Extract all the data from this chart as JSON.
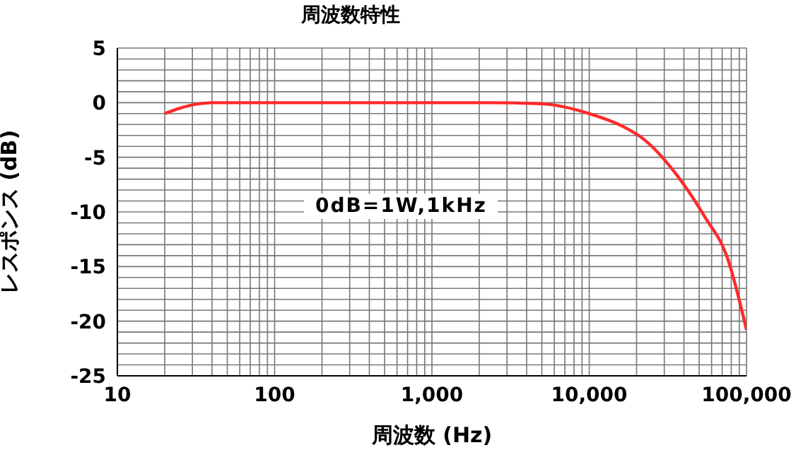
{
  "chart_data": {
    "type": "line",
    "title": "周波数特性",
    "xlabel": "周波数 (Hz)",
    "ylabel": "レスポンス (dB)",
    "annotations": [
      "0dB=1W,1kHz"
    ],
    "log": "x",
    "grid": true,
    "marker": "none",
    "line_style": "solid",
    "xlim": [
      10,
      100000
    ],
    "ylim": [
      -25,
      5
    ],
    "xticks": [
      10,
      {
        "value": 20,
        "label": null
      },
      {
        "value": 30,
        "label": null
      },
      {
        "value": 40,
        "label": null
      },
      {
        "value": 50,
        "label": null
      },
      {
        "value": 60,
        "label": null
      },
      {
        "value": 70,
        "label": null
      },
      {
        "value": 80,
        "label": null
      },
      {
        "value": 90,
        "label": null
      },
      100,
      {
        "value": 200,
        "label": null
      },
      {
        "value": 300,
        "label": null
      },
      {
        "value": 400,
        "label": null
      },
      {
        "value": 500,
        "label": null
      },
      {
        "value": 600,
        "label": null
      },
      {
        "value": 700,
        "label": null
      },
      {
        "value": 800,
        "label": null
      },
      {
        "value": 900,
        "label": null
      },
      {
        "value": 1000,
        "label": "1,000"
      },
      {
        "value": 2000,
        "label": null
      },
      {
        "value": 3000,
        "label": null
      },
      {
        "value": 4000,
        "label": null
      },
      {
        "value": 5000,
        "label": null
      },
      {
        "value": 6000,
        "label": null
      },
      {
        "value": 7000,
        "label": null
      },
      {
        "value": 8000,
        "label": null
      },
      {
        "value": 9000,
        "label": null
      },
      {
        "value": 10000,
        "label": "10,000"
      },
      {
        "value": 20000,
        "label": null
      },
      {
        "value": 30000,
        "label": null
      },
      {
        "value": 40000,
        "label": null
      },
      {
        "value": 50000,
        "label": null
      },
      {
        "value": 60000,
        "label": null
      },
      {
        "value": 70000,
        "label": null
      },
      {
        "value": 80000,
        "label": null
      },
      {
        "value": 90000,
        "label": null
      },
      {
        "value": 100000,
        "label": "100,000"
      }
    ],
    "yticks": [
      -25,
      {
        "value": -24,
        "label": null
      },
      {
        "value": -23,
        "label": null
      },
      {
        "value": -22,
        "label": null
      },
      {
        "value": -21,
        "label": null
      },
      -20,
      {
        "value": -19,
        "label": null
      },
      {
        "value": -18,
        "label": null
      },
      {
        "value": -17,
        "label": null
      },
      {
        "value": -16,
        "label": null
      },
      -15,
      {
        "value": -14,
        "label": null
      },
      {
        "value": -13,
        "label": null
      },
      {
        "value": -12,
        "label": null
      },
      {
        "value": -11,
        "label": null
      },
      -10,
      {
        "value": -9,
        "label": null
      },
      {
        "value": -8,
        "label": null
      },
      {
        "value": -7,
        "label": null
      },
      {
        "value": -6,
        "label": null
      },
      -5,
      {
        "value": -4,
        "label": null
      },
      {
        "value": -3,
        "label": null
      },
      {
        "value": -2,
        "label": null
      },
      {
        "value": -1,
        "label": null
      },
      0,
      {
        "value": 1,
        "label": null
      },
      {
        "value": 2,
        "label": null
      },
      {
        "value": 3,
        "label": null
      },
      {
        "value": 4,
        "label": null
      },
      5
    ],
    "series": [
      {
        "color": "#ff2a2a",
        "x": [
          20,
          25,
          33,
          40,
          60,
          100,
          300,
          1000,
          2200,
          5000,
          10000,
          16500,
          22000,
          35500,
          54000,
          76000,
          100000
        ],
        "values": [
          -1,
          -0.5,
          -0.1,
          0,
          0,
          0,
          0,
          0,
          0,
          -0.1,
          -1,
          -2.2,
          -3.3,
          -6.5,
          -10.4,
          -14.3,
          -20.8
        ]
      }
    ]
  }
}
